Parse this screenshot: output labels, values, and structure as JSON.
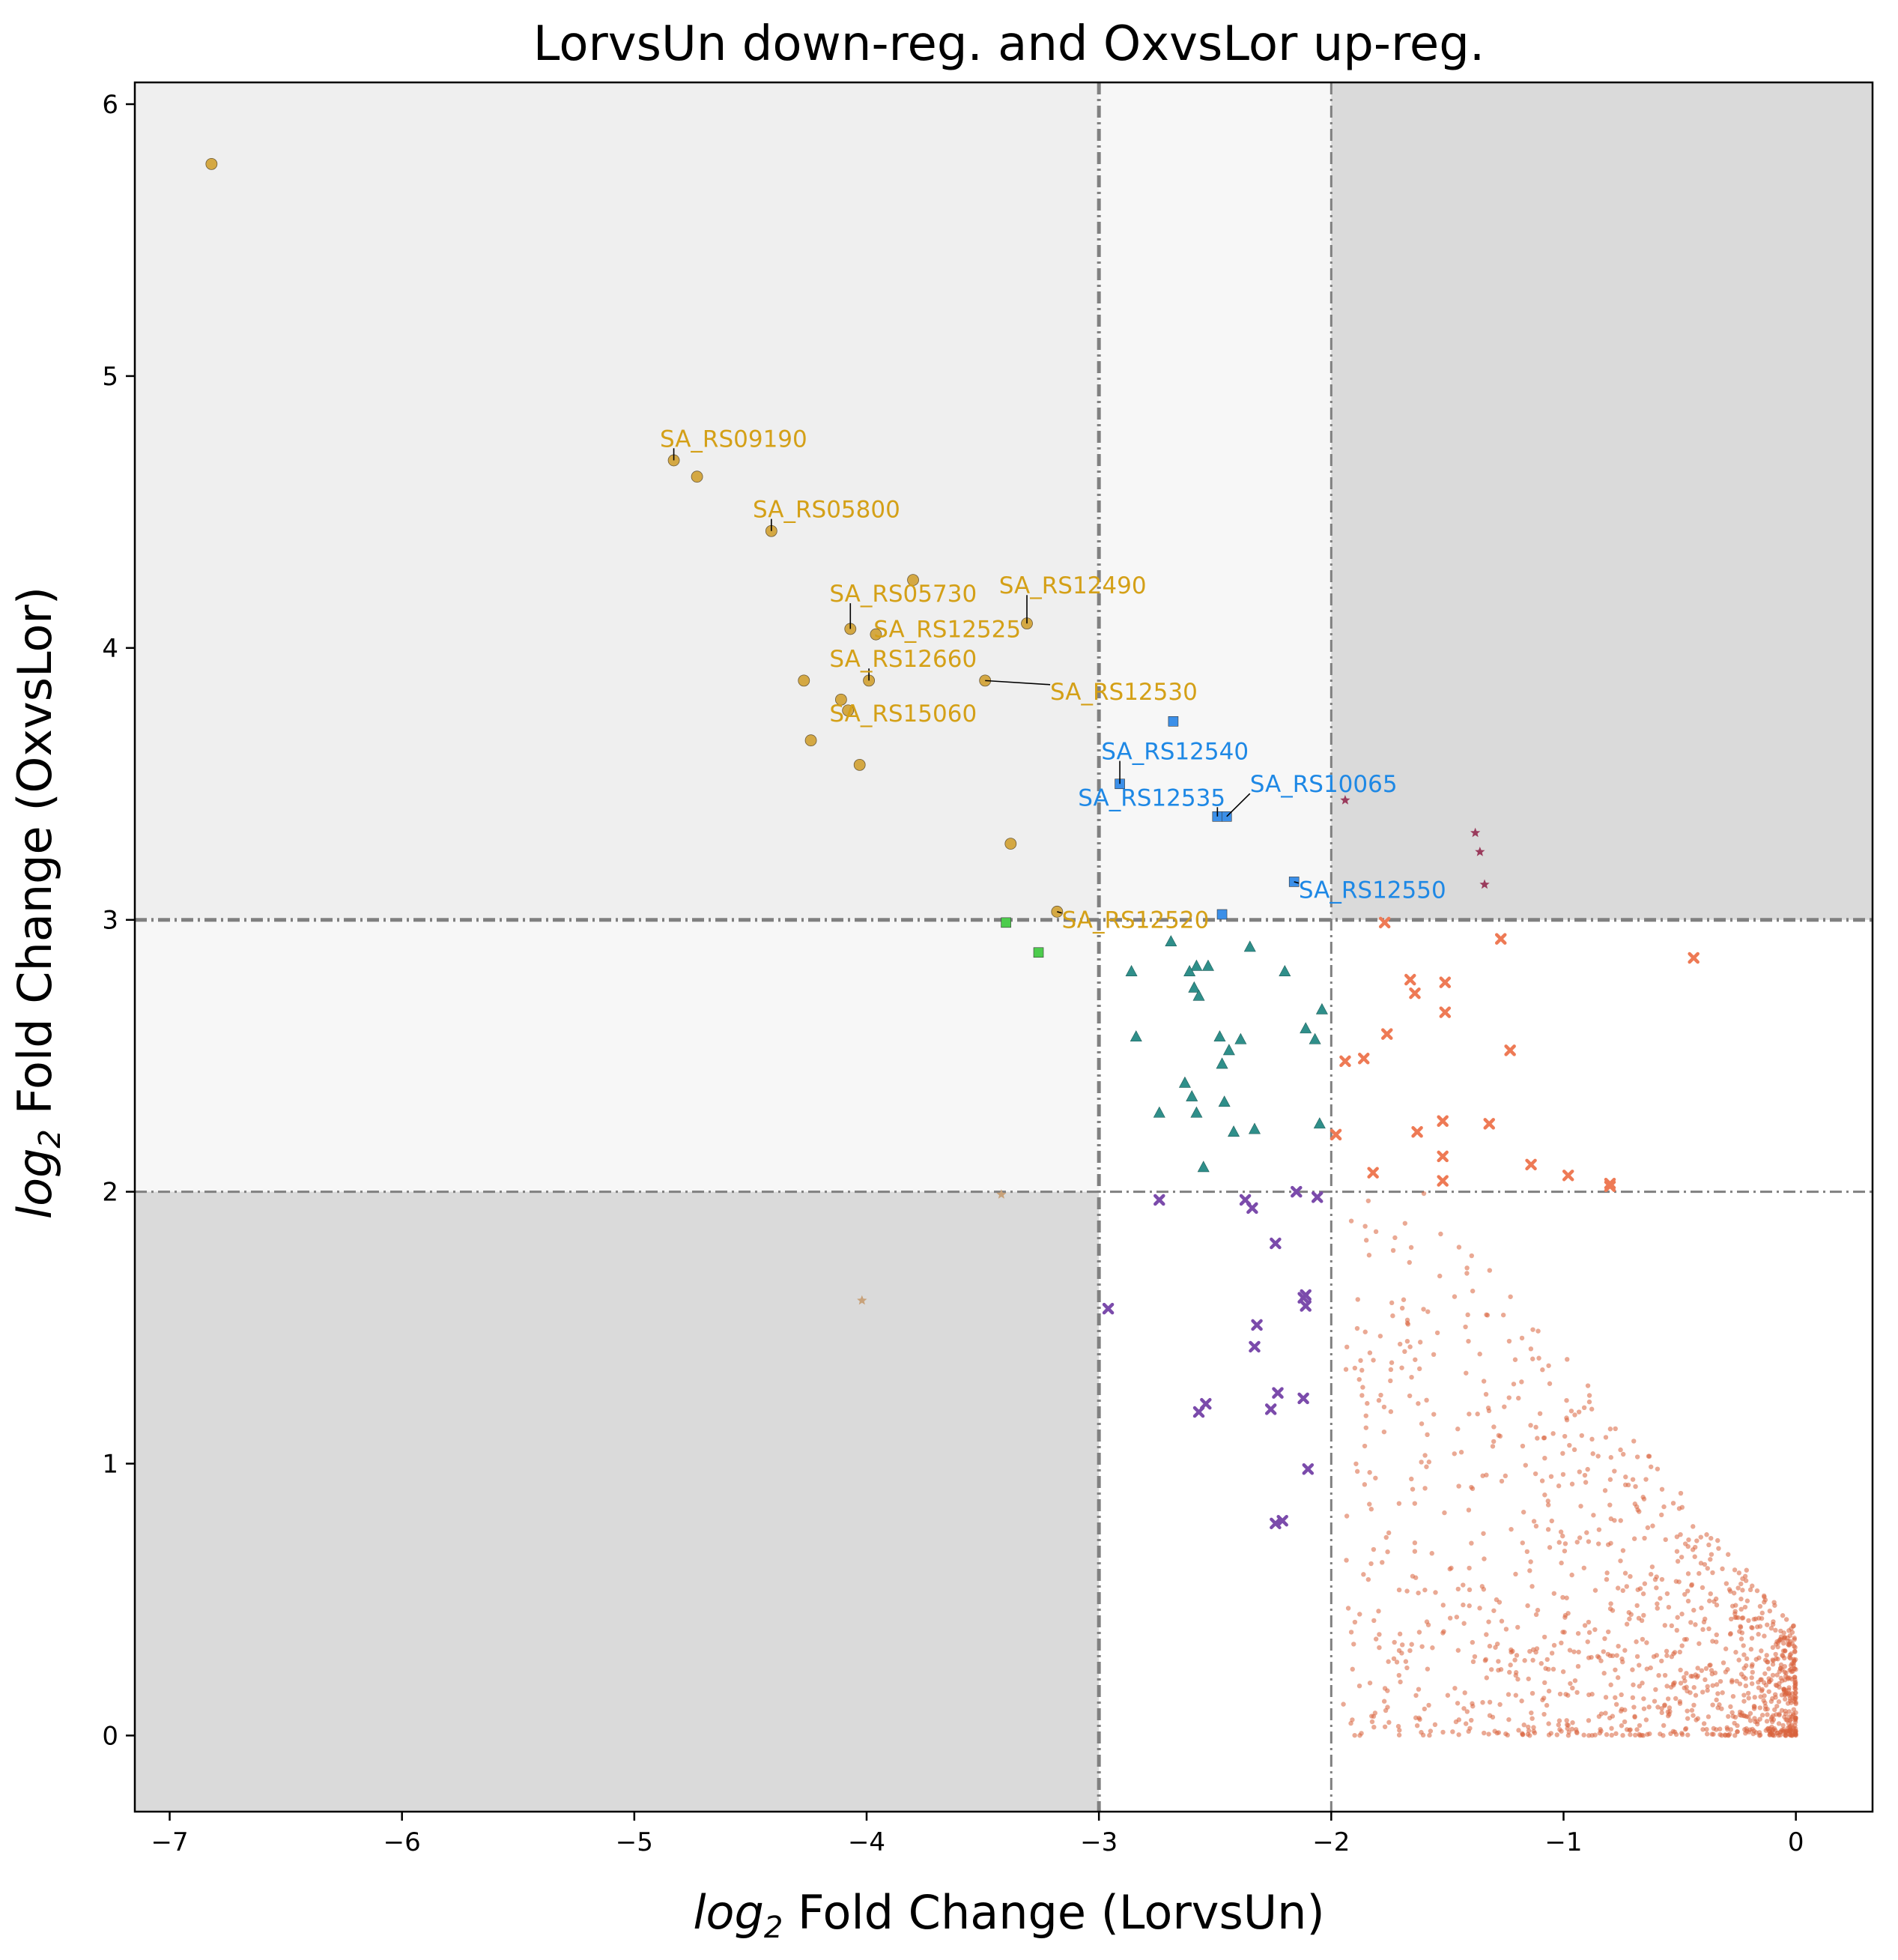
{
  "chart_data": {
    "type": "scatter",
    "title": "LorvsUn down-reg. and OxvsLor up-reg.",
    "xlabel_prefix": "log",
    "xlabel_sub": "2",
    "xlabel_suffix": " Fold Change (LorvsUn)",
    "ylabel_prefix": "log",
    "ylabel_sub": "2",
    "ylabel_suffix": " Fold Change (OxvsLor)",
    "xlim": [
      -7.15,
      0.33
    ],
    "ylim": [
      -0.28,
      6.08
    ],
    "xticks": [
      -7,
      -6,
      -5,
      -4,
      -3,
      -2,
      -1,
      0
    ],
    "xtick_labels": [
      "−7",
      "−6",
      "−5",
      "−4",
      "−3",
      "−2",
      "−1",
      "0"
    ],
    "yticks": [
      0,
      1,
      2,
      3,
      4,
      5,
      6
    ],
    "ytick_labels": [
      "0",
      "1",
      "2",
      "3",
      "4",
      "5",
      "6"
    ],
    "grid": false,
    "colors": {
      "region_top_left": "#efefef",
      "region_strip": "#f7f7f7",
      "region_dark": "#dadada",
      "threshold_line": "#808080"
    },
    "thresholds": {
      "x_strong": -3,
      "x_weak": -2,
      "y_strong": 3,
      "y_weak": 2
    },
    "series": [
      {
        "marker": "circle",
        "color": "#d4a843",
        "points": [
          [
            -6.82,
            5.78
          ],
          [
            -4.83,
            4.69
          ],
          [
            -4.73,
            4.63
          ],
          [
            -4.41,
            4.43
          ],
          [
            -3.8,
            4.25
          ],
          [
            -3.31,
            4.09
          ],
          [
            -4.07,
            4.07
          ],
          [
            -3.96,
            4.05
          ],
          [
            -4.27,
            3.88
          ],
          [
            -3.99,
            3.88
          ],
          [
            -3.49,
            3.88
          ],
          [
            -4.11,
            3.81
          ],
          [
            -4.08,
            3.77
          ],
          [
            -4.24,
            3.66
          ],
          [
            -4.03,
            3.57
          ],
          [
            -3.38,
            3.28
          ],
          [
            -3.18,
            3.03
          ]
        ]
      },
      {
        "marker": "square",
        "color": "#3b8fe8",
        "points": [
          [
            -2.68,
            3.73
          ],
          [
            -2.91,
            3.5
          ],
          [
            -2.49,
            3.38
          ],
          [
            -2.45,
            3.38
          ],
          [
            -2.16,
            3.14
          ],
          [
            -2.47,
            3.02
          ]
        ]
      },
      {
        "marker": "square",
        "color": "#4dcc4d",
        "points": [
          [
            -3.4,
            2.99
          ],
          [
            -3.26,
            2.88
          ]
        ]
      },
      {
        "marker": "triangle",
        "color": "#2f8f8a",
        "points": [
          [
            -2.69,
            2.92
          ],
          [
            -2.58,
            2.83
          ],
          [
            -2.61,
            2.81
          ],
          [
            -2.86,
            2.81
          ],
          [
            -2.53,
            2.83
          ],
          [
            -2.35,
            2.9
          ],
          [
            -2.2,
            2.81
          ],
          [
            -2.59,
            2.75
          ],
          [
            -2.57,
            2.72
          ],
          [
            -2.84,
            2.57
          ],
          [
            -2.11,
            2.6
          ],
          [
            -2.04,
            2.67
          ],
          [
            -2.07,
            2.56
          ],
          [
            -2.48,
            2.57
          ],
          [
            -2.39,
            2.56
          ],
          [
            -2.44,
            2.52
          ],
          [
            -2.47,
            2.47
          ],
          [
            -2.63,
            2.4
          ],
          [
            -2.6,
            2.35
          ],
          [
            -2.74,
            2.29
          ],
          [
            -2.58,
            2.29
          ],
          [
            -2.46,
            2.33
          ],
          [
            -2.42,
            2.22
          ],
          [
            -2.33,
            2.23
          ],
          [
            -2.05,
            2.25
          ],
          [
            -2.55,
            2.09
          ]
        ]
      },
      {
        "marker": "star",
        "color": "#9a3b5c",
        "points": [
          [
            -1.94,
            3.44
          ],
          [
            -1.38,
            3.32
          ],
          [
            -1.36,
            3.25
          ],
          [
            -1.34,
            3.13
          ]
        ]
      },
      {
        "marker": "star",
        "color": "#c8a27a",
        "points": [
          [
            -3.42,
            1.99
          ],
          [
            -4.02,
            1.6
          ]
        ]
      },
      {
        "marker": "x",
        "color": "#ee7a55",
        "points": [
          [
            -1.77,
            2.99
          ],
          [
            -1.27,
            2.93
          ],
          [
            -0.44,
            2.86
          ],
          [
            -1.66,
            2.78
          ],
          [
            -1.51,
            2.77
          ],
          [
            -1.64,
            2.73
          ],
          [
            -1.51,
            2.66
          ],
          [
            -1.76,
            2.58
          ],
          [
            -1.23,
            2.52
          ],
          [
            -1.86,
            2.49
          ],
          [
            -1.94,
            2.48
          ],
          [
            -1.52,
            2.26
          ],
          [
            -1.32,
            2.25
          ],
          [
            -1.98,
            2.21
          ],
          [
            -1.63,
            2.22
          ],
          [
            -1.52,
            2.13
          ],
          [
            -1.14,
            2.1
          ],
          [
            -1.52,
            2.04
          ],
          [
            -0.98,
            2.06
          ],
          [
            -1.82,
            2.07
          ],
          [
            -0.8,
            2.03
          ],
          [
            -0.8,
            2.02
          ]
        ]
      },
      {
        "marker": "x",
        "color": "#7b4bab",
        "points": [
          [
            -2.74,
            1.97
          ],
          [
            -2.37,
            1.97
          ],
          [
            -2.34,
            1.94
          ],
          [
            -2.15,
            2.0
          ],
          [
            -2.06,
            1.98
          ],
          [
            -2.24,
            1.81
          ],
          [
            -2.11,
            1.62
          ],
          [
            -2.12,
            1.61
          ],
          [
            -2.11,
            1.58
          ],
          [
            -2.96,
            1.57
          ],
          [
            -2.32,
            1.51
          ],
          [
            -2.33,
            1.43
          ],
          [
            -2.23,
            1.26
          ],
          [
            -2.12,
            1.24
          ],
          [
            -2.54,
            1.22
          ],
          [
            -2.57,
            1.19
          ],
          [
            -2.26,
            1.2
          ],
          [
            -2.1,
            0.98
          ],
          [
            -2.21,
            0.79
          ],
          [
            -2.24,
            0.78
          ]
        ]
      }
    ],
    "background_points": {
      "marker": "dot",
      "color": "#d9623c",
      "count_approx": 1200
    },
    "annotations": [
      {
        "text": "SA_RS09190",
        "label_at": [
          -4.89,
          4.74
        ],
        "point": [
          -4.83,
          4.69
        ],
        "color": "#d4a017"
      },
      {
        "text": "SA_RS05800",
        "label_at": [
          -4.49,
          4.48
        ],
        "point": [
          -4.41,
          4.43
        ],
        "color": "#d4a017"
      },
      {
        "text": "SA_RS05730",
        "label_at": [
          -4.16,
          4.17
        ],
        "point": [
          -4.07,
          4.07
        ],
        "color": "#d4a017"
      },
      {
        "text": "SA_RS12490",
        "label_at": [
          -3.43,
          4.2
        ],
        "point": [
          -3.31,
          4.09
        ],
        "color": "#d4a017"
      },
      {
        "text": "SA_RS12525",
        "label_at": [
          -3.97,
          4.04
        ],
        "point": [
          -3.96,
          4.05
        ],
        "color": "#d4a017"
      },
      {
        "text": "SA_RS12660",
        "label_at": [
          -4.16,
          3.93
        ],
        "point": [
          -3.99,
          3.88
        ],
        "color": "#d4a017"
      },
      {
        "text": "SA_RS12530",
        "label_at": [
          -3.21,
          3.81
        ],
        "point": [
          -3.49,
          3.88
        ],
        "color": "#d4a017"
      },
      {
        "text": "SA_RS15060",
        "label_at": [
          -4.16,
          3.73
        ],
        "point": [
          -4.08,
          3.77
        ],
        "color": "#d4a017"
      },
      {
        "text": "SA_RS12520",
        "label_at": [
          -3.16,
          2.97
        ],
        "point": [
          -3.18,
          3.03
        ],
        "color": "#d4a017"
      },
      {
        "text": "SA_RS12540",
        "label_at": [
          -2.99,
          3.59
        ],
        "point": [
          -2.91,
          3.5
        ],
        "color": "#1e88e5"
      },
      {
        "text": "SA_RS12535",
        "label_at": [
          -3.09,
          3.42
        ],
        "point": [
          -2.49,
          3.38
        ],
        "color": "#1e88e5"
      },
      {
        "text": "SA_RS10065",
        "label_at": [
          -2.35,
          3.47
        ],
        "point": [
          -2.45,
          3.38
        ],
        "color": "#1e88e5"
      },
      {
        "text": "SA_RS12550",
        "label_at": [
          -2.14,
          3.08
        ],
        "point": [
          -2.16,
          3.14
        ],
        "color": "#1e88e5"
      }
    ]
  }
}
